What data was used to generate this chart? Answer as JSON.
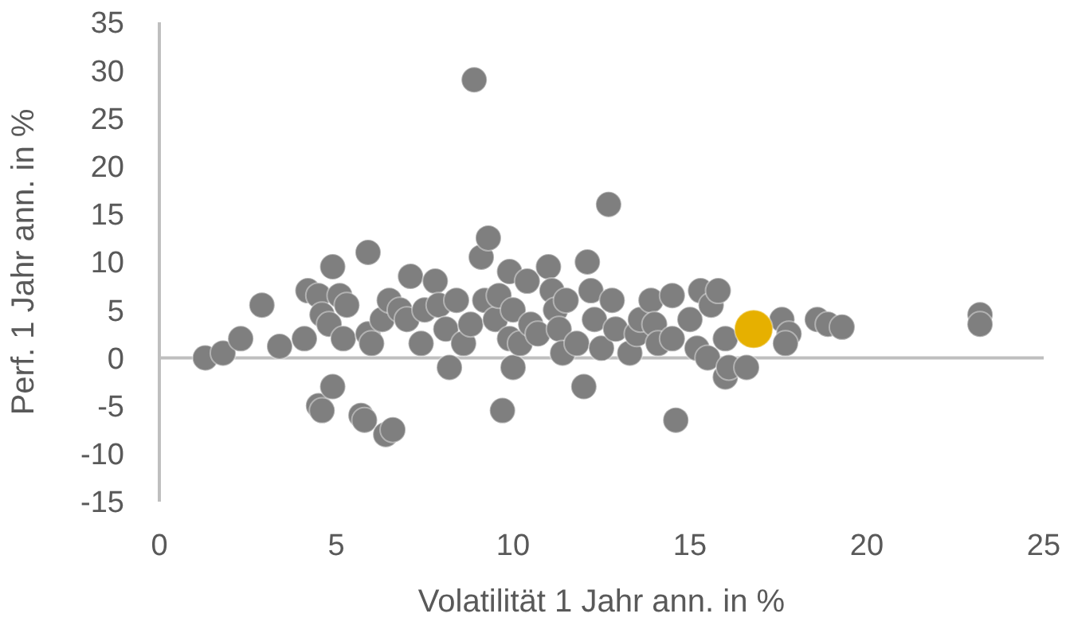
{
  "chart_data": {
    "type": "scatter",
    "xlabel": "Volatilität 1 Jahr ann. in %",
    "ylabel": "Perf. 1 Jahr ann. in %",
    "xlim": [
      0,
      25
    ],
    "xticks": [
      0,
      5,
      10,
      15,
      20,
      25
    ],
    "ylim": [
      -15,
      35
    ],
    "yticks": [
      -15,
      -10,
      -5,
      0,
      5,
      10,
      15,
      20,
      25,
      30,
      35
    ],
    "grid": false,
    "legend": false,
    "marker": "circle",
    "ref_lines": [
      {
        "axis": "y",
        "value": 0,
        "color": "#bfbfbf"
      }
    ],
    "series": [
      {
        "color": "#7f7f7f",
        "x": [
          1.3,
          1.8,
          2.3,
          2.9,
          3.4,
          4.1,
          4.2,
          4.5,
          4.6,
          4.8,
          4.9,
          5.1,
          5.2,
          5.3,
          4.5,
          4.6,
          4.9,
          5.7,
          5.8,
          5.9,
          6.0,
          5.9,
          6.3,
          6.5,
          6.4,
          6.6,
          6.8,
          7.0,
          7.1,
          7.4,
          7.5,
          7.8,
          7.9,
          8.1,
          8.2,
          8.4,
          8.6,
          8.8,
          8.9,
          9.1,
          9.3,
          9.2,
          9.5,
          9.6,
          9.7,
          9.9,
          9.9,
          10.0,
          10.0,
          10.2,
          10.4,
          10.5,
          10.7,
          11.0,
          11.1,
          11.2,
          11.3,
          11.4,
          11.5,
          11.8,
          12.0,
          12.1,
          12.2,
          12.3,
          12.5,
          12.7,
          12.8,
          12.9,
          13.3,
          13.5,
          13.6,
          13.9,
          14.0,
          14.1,
          14.5,
          14.6,
          14.5,
          15.0,
          15.3,
          15.2,
          15.5,
          15.6,
          15.8,
          16.0,
          16.0,
          16.1,
          16.6,
          17.6,
          17.8,
          17.7,
          18.6,
          18.9,
          19.3,
          23.2,
          23.2
        ],
        "values": [
          0,
          0.5,
          2,
          5.5,
          1.2,
          2,
          7,
          6.5,
          4.5,
          3.5,
          9.5,
          6.5,
          2,
          5.5,
          -5,
          -5.5,
          -3,
          -6,
          -6.5,
          2.5,
          1.5,
          11,
          4,
          6,
          -8,
          -7.5,
          5,
          4,
          8.5,
          1.5,
          5,
          8,
          5.5,
          3,
          -1,
          6,
          1.5,
          3.5,
          29,
          10.5,
          12.5,
          6,
          4,
          6.5,
          -5.5,
          9,
          2,
          -1,
          5,
          1.5,
          8,
          3.5,
          2.5,
          9.5,
          7,
          5,
          3,
          0.5,
          6,
          1.5,
          -3,
          10,
          7,
          4,
          1,
          16,
          6,
          3,
          0.5,
          2.5,
          4,
          6,
          3.5,
          1.5,
          6.5,
          -6.5,
          2,
          4,
          7,
          1,
          0,
          5.5,
          7,
          2,
          -2,
          -1,
          -1,
          4,
          2.5,
          1.5,
          4,
          3.5,
          3.2,
          4.5,
          3.5
        ]
      },
      {
        "color": "#e6b000",
        "x": [
          16.8
        ],
        "values": [
          3
        ]
      }
    ]
  }
}
